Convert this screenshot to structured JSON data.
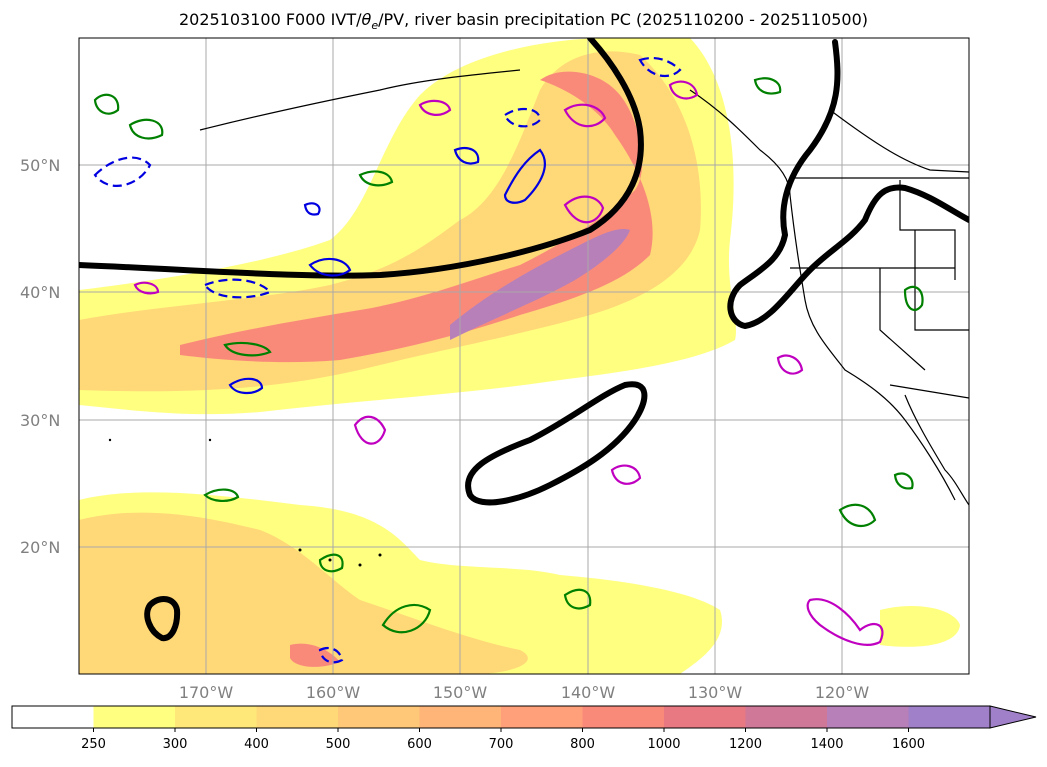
{
  "title": {
    "prefix": "2025103100 F000 IVT/",
    "theta": "θ",
    "theta_sub": "e",
    "suffix": "/PV, river basin precipitation PC (2025110200 - 2025110500)"
  },
  "map": {
    "lat_labels": [
      "50°N",
      "40°N",
      "30°N",
      "20°N"
    ],
    "lon_labels": [
      "170°W",
      "160°W",
      "150°W",
      "140°W",
      "130°W",
      "120°W"
    ]
  },
  "colorbar": {
    "levels": [
      "250",
      "300",
      "400",
      "500",
      "600",
      "700",
      "800",
      "1000",
      "1200",
      "1400",
      "1600"
    ],
    "colors": [
      "#ffffff",
      "#ffff80",
      "#ffe87a",
      "#ffd878",
      "#ffc878",
      "#ffb478",
      "#ffa07a",
      "#f98a7a",
      "#e87882",
      "#d07898",
      "#b880b8",
      "#a080c8"
    ],
    "extend": "max"
  },
  "colors": {
    "ivt_low": "#ffff80",
    "ivt_mid": "#ffd878",
    "ivt_high": "#f98a7a",
    "ivt_max": "#b880b8",
    "pv_contour": "#000000",
    "theta_e_blue": "#0000e0",
    "precip_green": "#008000",
    "precip_magenta": "#c000c0"
  }
}
